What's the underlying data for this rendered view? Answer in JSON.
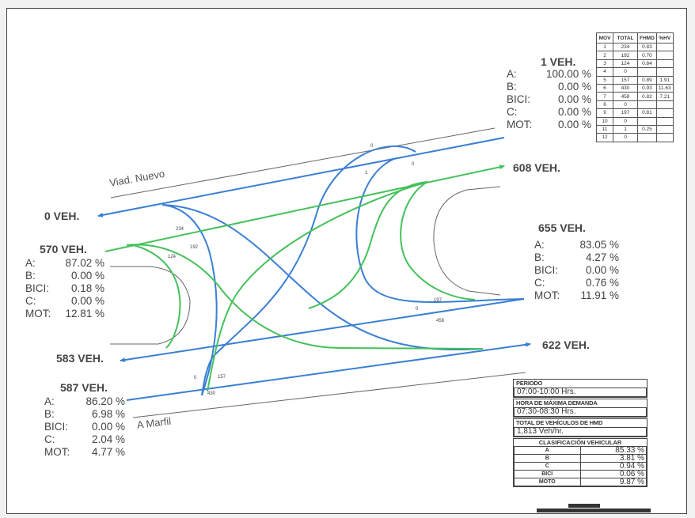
{
  "streets": {
    "top": "Viad. Nuevo",
    "bottom": "A Marfil"
  },
  "colors": {
    "blue": "#3a7fd4",
    "green": "#44c15a",
    "road": "#666666",
    "frame": "#444444"
  },
  "volumes": {
    "top_right_in": "1 VEH.",
    "top_right_out": "608 VEH.",
    "left_out_top": "0 VEH.",
    "left_in": "570 VEH.",
    "right_in": "655 VEH.",
    "right_out": "622 VEH.",
    "left_out_bottom": "583 VEH.",
    "bottom_left_in": "587 VEH."
  },
  "compositions": {
    "top_right": [
      {
        "k": "A:",
        "v": "100.00 %"
      },
      {
        "k": "B:",
        "v": "0.00 %"
      },
      {
        "k": "BICI:",
        "v": "0.00 %"
      },
      {
        "k": "C:",
        "v": "0.00 %"
      },
      {
        "k": "MOT:",
        "v": "0.00 %"
      }
    ],
    "left": [
      {
        "k": "A:",
        "v": "87.02 %"
      },
      {
        "k": "B:",
        "v": "0.00 %"
      },
      {
        "k": "BICI:",
        "v": "0.18 %"
      },
      {
        "k": "C:",
        "v": "0.00 %"
      },
      {
        "k": "MOT:",
        "v": "12.81 %"
      }
    ],
    "right": [
      {
        "k": "A:",
        "v": "83.05 %"
      },
      {
        "k": "B:",
        "v": "4.27 %"
      },
      {
        "k": "BICI:",
        "v": "0.00 %"
      },
      {
        "k": "C:",
        "v": "0.76 %"
      },
      {
        "k": "MOT:",
        "v": "11.91 %"
      }
    ],
    "bottom_left": [
      {
        "k": "A:",
        "v": "86.20 %"
      },
      {
        "k": "B:",
        "v": "6.98 %"
      },
      {
        "k": "BICI:",
        "v": "0.00 %"
      },
      {
        "k": "C:",
        "v": "2.04 %"
      },
      {
        "k": "MOT:",
        "v": "4.77 %"
      }
    ]
  },
  "movement_labels": [
    "234",
    "192",
    "124",
    "0",
    "1",
    "0",
    "197",
    "0",
    "458",
    "0",
    "157",
    "430"
  ],
  "mov_table": {
    "headers": [
      "MOV",
      "TOTAL",
      "FHMD",
      "%HV"
    ],
    "rows": [
      [
        "1",
        "234",
        "0.83",
        ""
      ],
      [
        "2",
        "192",
        "0.70",
        ""
      ],
      [
        "3",
        "124",
        "0.84",
        ""
      ],
      [
        "4",
        "0",
        "",
        ""
      ],
      [
        "5",
        "157",
        "0.89",
        "1.91"
      ],
      [
        "6",
        "430",
        "0.93",
        "11.63"
      ],
      [
        "7",
        "458",
        "0.82",
        "7.21"
      ],
      [
        "8",
        "0",
        "",
        ""
      ],
      [
        "9",
        "197",
        "0.81",
        ""
      ],
      [
        "10",
        "0",
        "",
        ""
      ],
      [
        "11",
        "1",
        "0.25",
        ""
      ],
      [
        "12",
        "0",
        "",
        ""
      ]
    ]
  },
  "summary": {
    "periodo_label": "PERIODO",
    "periodo": "07:00-10:00 Hrs.",
    "hmd_label": "HORA DE MÁXIMA DEMANDA",
    "hmd": "07:30-08:30 Hrs.",
    "total_label": "TOTAL DE VEHÍCULOS DE HMD",
    "total": "1,813 Veh/hr.",
    "class_label": "CLASIFICACIÓN VEHICULAR",
    "classes": [
      {
        "cat": "A",
        "pct": "85.33 %"
      },
      {
        "cat": "B",
        "pct": "3.81 %"
      },
      {
        "cat": "C",
        "pct": "0.94 %"
      },
      {
        "cat": "BICI",
        "pct": "0.06 %"
      },
      {
        "cat": "MOTO",
        "pct": "9.87 %"
      }
    ]
  }
}
